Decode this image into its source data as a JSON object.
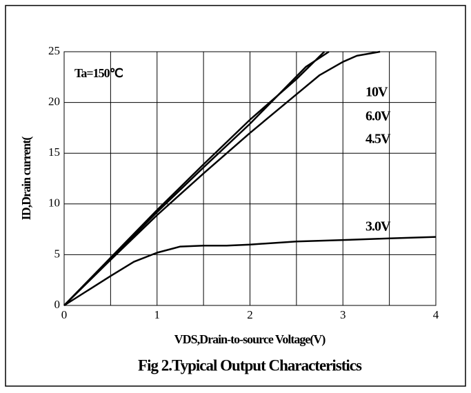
{
  "chart_data": {
    "type": "line",
    "title": "Fig 2.Typical Output Characteristics",
    "xlabel": "VDS,Drain-to-source Voltage(V)",
    "ylabel": "ID,Drain current(",
    "annotation": "Ta=150℃",
    "xlim": [
      0,
      4
    ],
    "ylim": [
      0,
      25
    ],
    "xticks": [
      0,
      1,
      2,
      3,
      4
    ],
    "x_minor_ticks": [
      0.5,
      1.5,
      2.5,
      3.5
    ],
    "yticks": [
      0,
      5,
      10,
      15,
      20,
      25
    ],
    "grid": true,
    "series": [
      {
        "name": "10V",
        "color": "#000000",
        "x": [
          0,
          0.5,
          1,
          1.5,
          2,
          2.5,
          2.8
        ],
        "values": [
          0,
          4.7,
          9.4,
          13.9,
          18.3,
          22.3,
          25
        ]
      },
      {
        "name": "6.0V",
        "color": "#000000",
        "x": [
          0,
          0.5,
          1,
          1.5,
          2,
          2.6,
          2.85
        ],
        "values": [
          0,
          4.6,
          9.2,
          13.6,
          17.9,
          23.5,
          25
        ]
      },
      {
        "name": "4.5V",
        "color": "#000000",
        "x": [
          0,
          0.5,
          1,
          1.5,
          2,
          2.5,
          2.75,
          3,
          3.15,
          3.4
        ],
        "values": [
          0,
          4.5,
          8.9,
          13,
          17,
          20.8,
          22.7,
          24,
          24.6,
          25
        ]
      },
      {
        "name": "3.0V",
        "color": "#000000",
        "x": [
          0,
          0.5,
          0.75,
          1,
          1.25,
          1.5,
          1.75,
          2,
          2.5,
          3,
          3.5,
          4
        ],
        "values": [
          0,
          2.9,
          4.3,
          5.2,
          5.8,
          5.9,
          5.9,
          6.0,
          6.3,
          6.45,
          6.6,
          6.75
        ]
      }
    ]
  }
}
